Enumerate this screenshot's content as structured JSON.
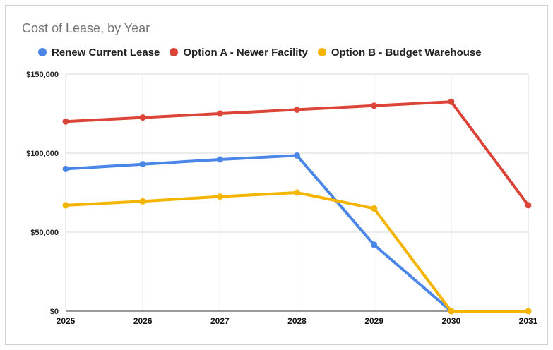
{
  "chart_data": {
    "type": "line",
    "title": "Cost of Lease, by Year",
    "x": [
      "2025",
      "2026",
      "2027",
      "2028",
      "2029",
      "2030",
      "2031"
    ],
    "ylim": [
      0,
      150000
    ],
    "yticks": [
      0,
      50000,
      100000,
      150000
    ],
    "ytick_labels": [
      "$0",
      "$50,000",
      "$100,000",
      "$150,000"
    ],
    "grid": true,
    "legend_position": "top-left",
    "series": [
      {
        "name": "Renew Current Lease",
        "color": "#4a86e8",
        "values": [
          90000,
          93000,
          96000,
          98500,
          42000,
          0,
          null
        ]
      },
      {
        "name": "Option A - Newer Facility",
        "color": "#db4437",
        "values": [
          120000,
          122500,
          125000,
          127500,
          130000,
          132500,
          67000
        ]
      },
      {
        "name": "Option B - Budget Warehouse",
        "color": "#f4b400",
        "values": [
          67000,
          69500,
          72500,
          75000,
          65000,
          0,
          0
        ]
      }
    ]
  }
}
